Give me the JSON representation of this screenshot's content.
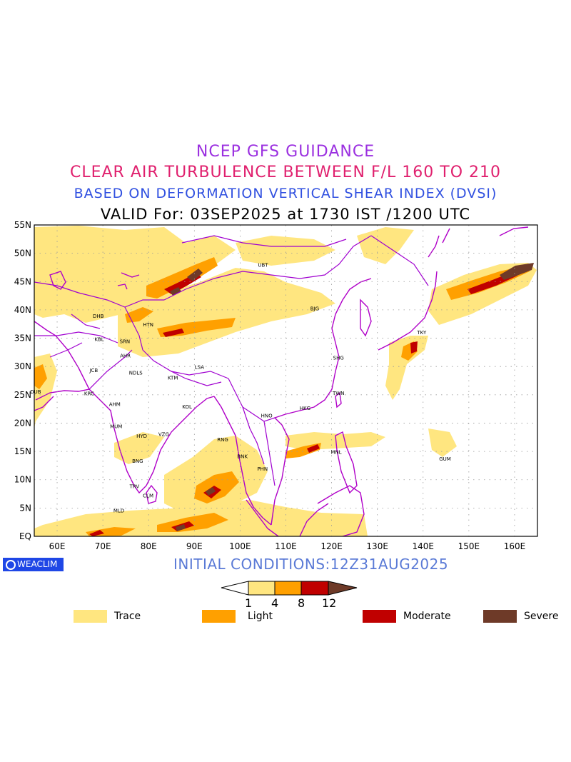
{
  "titles": {
    "line1": "NCEP GFS GUIDANCE",
    "line2": "CLEAR AIR TURBULENCE BETWEEN F/L 160 TO 210",
    "line3": "BASED ON DEFORMATION VERTICAL SHEAR INDEX (DVSI)",
    "line4": "VALID For: 03SEP2025 at 1730 IST /1200 UTC"
  },
  "map": {
    "lat_labels": [
      "55N",
      "50N",
      "45N",
      "40N",
      "35N",
      "30N",
      "25N",
      "20N",
      "15N",
      "10N",
      "5N",
      "EQ"
    ],
    "lon_labels": [
      "60E",
      "70E",
      "80E",
      "90E",
      "100E",
      "110E",
      "120E",
      "130E",
      "140E",
      "150E",
      "160E"
    ],
    "cities": [
      {
        "name": "UBT",
        "lon": 105,
        "lat": 47.6
      },
      {
        "name": "BJG",
        "lon": 116.3,
        "lat": 39.9
      },
      {
        "name": "DHB",
        "lon": 69,
        "lat": 38.6
      },
      {
        "name": "HTN",
        "lon": 79.9,
        "lat": 37.1
      },
      {
        "name": "KBL",
        "lon": 69.2,
        "lat": 34.5
      },
      {
        "name": "SRN",
        "lon": 74.8,
        "lat": 34.1
      },
      {
        "name": "AHR",
        "lon": 74.9,
        "lat": 31.6
      },
      {
        "name": "TKY",
        "lon": 139.7,
        "lat": 35.7
      },
      {
        "name": "SHG",
        "lon": 121.5,
        "lat": 31.2
      },
      {
        "name": "JCB",
        "lon": 68,
        "lat": 29
      },
      {
        "name": "NDLS",
        "lon": 77.2,
        "lat": 28.6
      },
      {
        "name": "LSA",
        "lon": 91.1,
        "lat": 29.6
      },
      {
        "name": "KTM",
        "lon": 85.3,
        "lat": 27.7
      },
      {
        "name": "DUB",
        "lon": 55.3,
        "lat": 25.2
      },
      {
        "name": "TWN",
        "lon": 121.5,
        "lat": 25
      },
      {
        "name": "KRC",
        "lon": 67,
        "lat": 24.9
      },
      {
        "name": "AHM",
        "lon": 72.6,
        "lat": 23
      },
      {
        "name": "KOL",
        "lon": 88.4,
        "lat": 22.6
      },
      {
        "name": "HNO",
        "lon": 105.8,
        "lat": 21
      },
      {
        "name": "HKG",
        "lon": 114.2,
        "lat": 22.3
      },
      {
        "name": "MUM",
        "lon": 72.9,
        "lat": 19.1
      },
      {
        "name": "HYD",
        "lon": 78.5,
        "lat": 17.4
      },
      {
        "name": "VZG",
        "lon": 83.3,
        "lat": 17.7
      },
      {
        "name": "RNG",
        "lon": 96.2,
        "lat": 16.8
      },
      {
        "name": "MNL",
        "lon": 121,
        "lat": 14.6
      },
      {
        "name": "BNK",
        "lon": 100.5,
        "lat": 13.8
      },
      {
        "name": "GUM",
        "lon": 144.8,
        "lat": 13.4
      },
      {
        "name": "PHN",
        "lon": 104.9,
        "lat": 11.6
      },
      {
        "name": "BNG",
        "lon": 77.6,
        "lat": 13
      },
      {
        "name": "TRV",
        "lon": 76.9,
        "lat": 8.5
      },
      {
        "name": "CLM",
        "lon": 79.9,
        "lat": 6.9
      },
      {
        "name": "MLD",
        "lon": 73.5,
        "lat": 4.2
      }
    ]
  },
  "colors": {
    "trace": "#ffe680",
    "light": "#ffa000",
    "moderate": "#c00000",
    "severe": "#6e3a28",
    "coast": "#b000c8",
    "border": "#a000d0"
  },
  "badge": {
    "label": "WEACLIM"
  },
  "initial": "INITIAL CONDITIONS:12Z31AUG2025",
  "colorbar": {
    "ticks": [
      "1",
      "4",
      "8",
      "12"
    ]
  },
  "legend": [
    {
      "label": "Trace",
      "color": "#ffe680"
    },
    {
      "label": "Light",
      "color": "#ffa000"
    },
    {
      "label": "Moderate",
      "color": "#c00000"
    },
    {
      "label": "Severe",
      "color": "#6e3a28"
    }
  ]
}
